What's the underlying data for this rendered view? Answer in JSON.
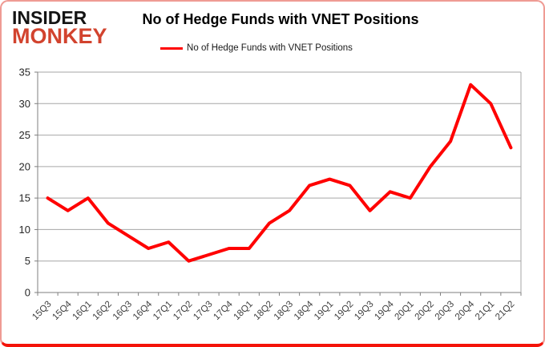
{
  "logo": {
    "line1": "INSIDER",
    "line2": "MONKEY"
  },
  "header": {
    "title": "No of Hedge Funds with VNET Positions"
  },
  "legend": {
    "label": "No of Hedge Funds with VNET Positions",
    "marker_color": "#ff0000"
  },
  "chart_data": {
    "type": "line",
    "title": "No of Hedge Funds with VNET Positions",
    "categories": [
      "15Q3",
      "15Q4",
      "16Q1",
      "16Q2",
      "16Q3",
      "16Q4",
      "17Q1",
      "17Q2",
      "17Q3",
      "17Q4",
      "18Q1",
      "18Q2",
      "18Q3",
      "18Q4",
      "19Q1",
      "19Q2",
      "19Q3",
      "19Q4",
      "20Q1",
      "20Q2",
      "20Q3",
      "20Q4",
      "21Q1",
      "21Q2"
    ],
    "series": [
      {
        "name": "No of Hedge Funds with VNET Positions",
        "values": [
          15,
          13,
          15,
          11,
          9,
          7,
          8,
          5,
          6,
          7,
          7,
          11,
          13,
          17,
          18,
          17,
          13,
          16,
          15,
          20,
          24,
          33,
          30,
          23
        ]
      }
    ],
    "xlabel": "",
    "ylabel": "",
    "ylim": [
      0,
      35
    ],
    "ytick_step": 5,
    "yticks": [
      0,
      5,
      10,
      15,
      20,
      25,
      30,
      35
    ],
    "grid": true,
    "legend_position": "top",
    "line_color": "#ff0000",
    "axis_color": "#7f7f7f",
    "gridline_color": "#a6a6a6",
    "ylabel_color": "#262626",
    "xlabel_color": "#404040"
  }
}
